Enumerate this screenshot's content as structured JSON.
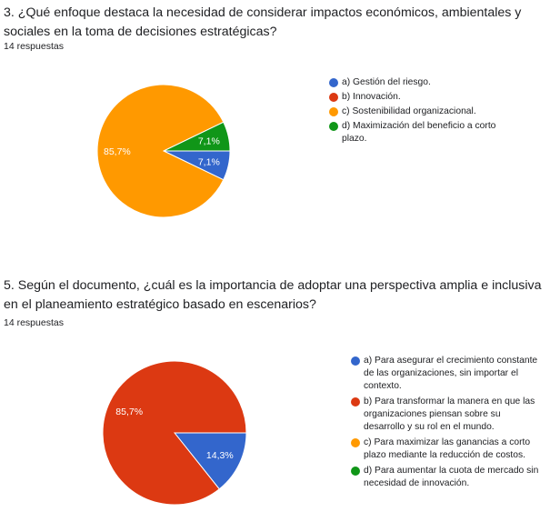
{
  "chart_data": [
    {
      "type": "pie",
      "title": "3.  ¿Qué enfoque destaca la necesidad de considerar impactos económicos, ambientales y sociales en la toma de decisiones estratégicas?",
      "subtitle": "14 respuestas",
      "categories": [
        "a) Gestión del riesgo.",
        "b) Innovación.",
        "c) Sostenibilidad organizacional.",
        "d) Maximización del beneficio a corto plazo."
      ],
      "values": [
        1,
        0,
        12,
        1
      ],
      "slice_labels": [
        "7,1%",
        "",
        "85,7%",
        "7,1%"
      ],
      "colors": [
        "#3366cc",
        "#dc3912",
        "#ff9900",
        "#109618"
      ],
      "legend_position": "right"
    },
    {
      "type": "pie",
      "title": "5.  Según el documento, ¿cuál es la importancia de adoptar una perspectiva amplia e inclusiva en el planeamiento estratégico basado en escenarios?",
      "subtitle": "14 respuestas",
      "categories": [
        "a) Para asegurar el crecimiento constante de las organizaciones, sin importar el contexto.",
        "b) Para transformar la manera en que las organizaciones piensan sobre su desarrollo y su rol en el mundo.",
        "c) Para maximizar las ganancias a corto plazo mediante la reducción de costos.",
        "d) Para aumentar la cuota de mercado sin necesidad de innovación."
      ],
      "values": [
        2,
        12,
        0,
        0
      ],
      "slice_labels": [
        "14,3%",
        "85,7%",
        "",
        ""
      ],
      "colors": [
        "#3366cc",
        "#dc3912",
        "#ff9900",
        "#109618"
      ],
      "legend_position": "right"
    }
  ]
}
